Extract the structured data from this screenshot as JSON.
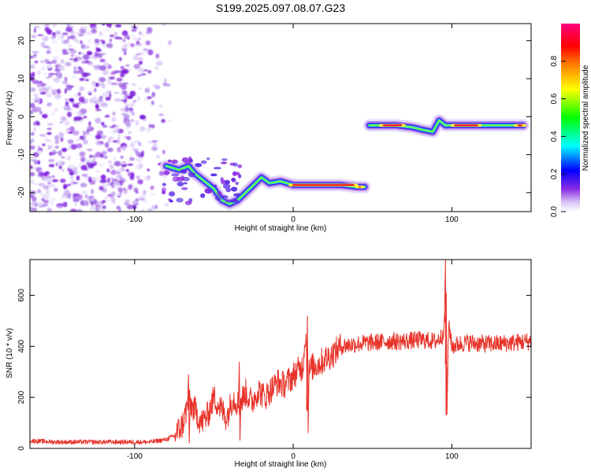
{
  "title": "S199.2025.097.08.07.G23",
  "chart_data": [
    {
      "type": "heatmap",
      "xlabel": "Height of straight line (km)",
      "ylabel": "Frequency (Hz)",
      "xlim": [
        -166,
        150
      ],
      "ylim": [
        -25,
        24.5
      ],
      "x_ticks": [
        -100,
        0,
        100
      ],
      "x_tick_labels": [
        "-100",
        "0",
        "100"
      ],
      "y_ticks": [
        -20,
        -10,
        0,
        10,
        20
      ],
      "y_tick_labels": [
        "-20",
        "-10",
        "0",
        "10",
        "20"
      ],
      "colorbar": {
        "label": "Normalized spectral amplitude",
        "range": [
          0,
          1
        ],
        "ticks": [
          0.0,
          0.2,
          0.4,
          0.6,
          0.8
        ],
        "tick_labels": [
          "0.0",
          "0.2",
          "0.4",
          "0.6",
          "0.8"
        ],
        "colors": [
          "#ffffff",
          "#8a2be2",
          "#0000ff",
          "#00ffff",
          "#00ff00",
          "#ffff00",
          "#ff8000",
          "#ff0000",
          "#ff0080"
        ]
      },
      "noise_region": {
        "x": [
          -166,
          -75
        ],
        "y": [
          -25,
          24.5
        ],
        "amplitude": 0.2
      },
      "track": [
        {
          "x": -80,
          "y": -13
        },
        {
          "x": -72,
          "y": -14
        },
        {
          "x": -66,
          "y": -13
        },
        {
          "x": -62,
          "y": -15
        },
        {
          "x": -56,
          "y": -17
        },
        {
          "x": -50,
          "y": -19
        },
        {
          "x": -45,
          "y": -22
        },
        {
          "x": -40,
          "y": -23
        },
        {
          "x": -35,
          "y": -22
        },
        {
          "x": -30,
          "y": -20
        },
        {
          "x": -25,
          "y": -18
        },
        {
          "x": -20,
          "y": -16
        },
        {
          "x": -15,
          "y": -17.5
        },
        {
          "x": -8,
          "y": -17
        },
        {
          "x": 0,
          "y": -18
        },
        {
          "x": 10,
          "y": -18
        },
        {
          "x": 20,
          "y": -18
        },
        {
          "x": 30,
          "y": -18
        },
        {
          "x": 40,
          "y": -18.5
        },
        {
          "x": 45,
          "y": -18.5
        },
        {
          "x": 48,
          "y": -2.3
        },
        {
          "x": 55,
          "y": -2.3
        },
        {
          "x": 65,
          "y": -2.3
        },
        {
          "x": 75,
          "y": -2.8
        },
        {
          "x": 82,
          "y": -3.5
        },
        {
          "x": 88,
          "y": -4
        },
        {
          "x": 92,
          "y": -1
        },
        {
          "x": 96,
          "y": -2.3
        },
        {
          "x": 105,
          "y": -2.3
        },
        {
          "x": 115,
          "y": -2.3
        },
        {
          "x": 125,
          "y": -2.3
        },
        {
          "x": 135,
          "y": -2.3
        },
        {
          "x": 145,
          "y": -2.3
        }
      ]
    },
    {
      "type": "line",
      "xlabel": "Height of straight line (km)",
      "ylabel": "SNR (10 * v/v)",
      "xlim": [
        -166,
        150
      ],
      "ylim": [
        0,
        740
      ],
      "x_ticks": [
        -100,
        0,
        100
      ],
      "x_tick_labels": [
        "-100",
        "0",
        "100"
      ],
      "y_ticks": [
        0,
        200,
        400,
        600
      ],
      "y_tick_labels": [
        "0",
        "200",
        "400",
        "600"
      ],
      "series": [
        {
          "color": "#e8332a",
          "x": [
            -166,
            -150,
            -130,
            -110,
            -90,
            -80,
            -75,
            -70,
            -66,
            -62,
            -58,
            -54,
            -50,
            -46,
            -42,
            -38,
            -34,
            -30,
            -26,
            -22,
            -18,
            -14,
            -10,
            -6,
            -2,
            2,
            6,
            8,
            9,
            10,
            12,
            16,
            20,
            25,
            30,
            40,
            50,
            60,
            70,
            80,
            90,
            94,
            96,
            97,
            98,
            100,
            105,
            110,
            120,
            130,
            140,
            150
          ],
          "y": [
            30,
            25,
            25,
            25,
            25,
            35,
            50,
            90,
            180,
            150,
            100,
            130,
            200,
            160,
            120,
            200,
            170,
            220,
            180,
            230,
            200,
            230,
            260,
            250,
            270,
            300,
            320,
            470,
            150,
            300,
            320,
            330,
            350,
            370,
            400,
            410,
            415,
            420,
            420,
            425,
            420,
            440,
            520,
            140,
            500,
            400,
            410,
            415,
            410,
            410,
            415,
            420
          ]
        }
      ]
    }
  ]
}
